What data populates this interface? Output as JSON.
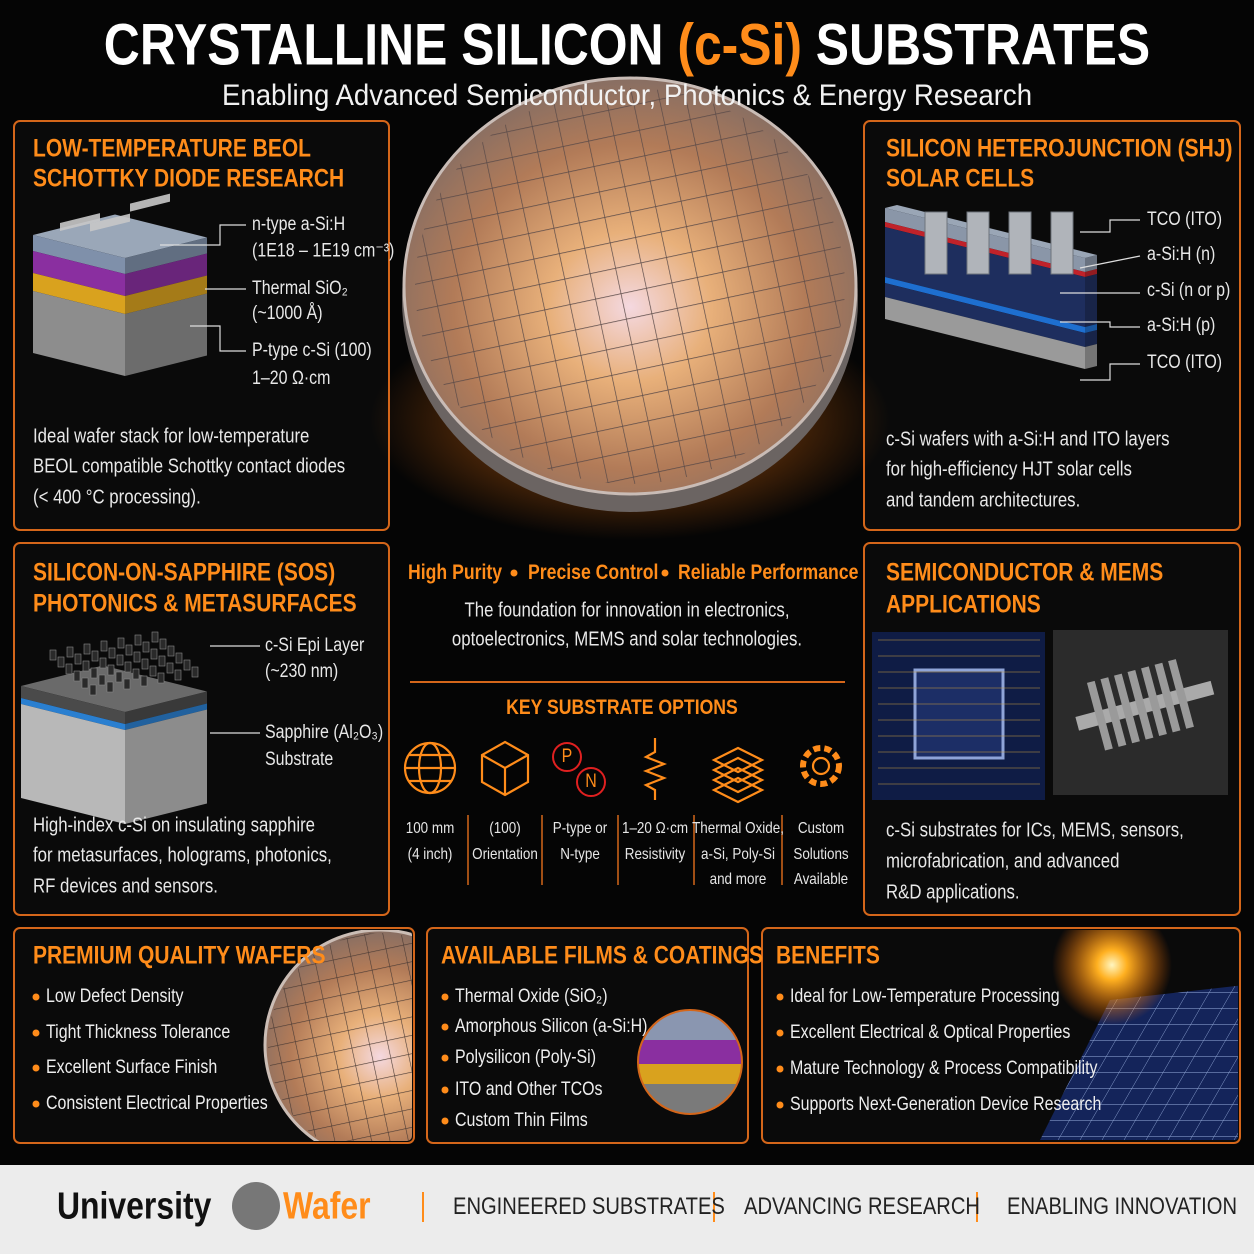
{
  "header": {
    "title_start": "CRYSTALLINE SILICON",
    "title_highlight": "(c-Si)",
    "title_end": "SUBSTRATES",
    "subtitle": "Enabling Advanced Semiconductor, Photonics & Energy Research"
  },
  "schottky": {
    "title": [
      "LOW-TEMPERATURE BEOL",
      "SCHOTTKY DIODE RESEARCH"
    ],
    "layers": [
      [
        "n-type a-Si:H",
        "(1E18 – 1E19 cm⁻³)"
      ],
      [
        "Thermal SiO₂",
        "(~1000 Å)"
      ],
      [
        "P-type c-Si (100)",
        "1–20 Ω·cm"
      ]
    ],
    "description": [
      "Ideal wafer stack for low-temperature",
      "BEOL compatible Schottky contact diodes",
      "(< 400 °C processing)."
    ]
  },
  "shj": {
    "title": [
      "SILICON HETEROJUNCTION (SHJ)",
      "SOLAR CELLS"
    ],
    "layers": [
      "TCO (ITO)",
      "a-Si:H (n)",
      "c-Si (n or p)",
      "a-Si:H (p)",
      "TCO (ITO)"
    ],
    "description": [
      "c-Si wafers with a-Si:H and ITO layers",
      "for high-efficiency HJT solar cells",
      "and tandem architectures."
    ]
  },
  "sos": {
    "title": [
      "SILICON-ON-SAPPHIRE (SOS)",
      "PHOTONICS & METASURFACES"
    ],
    "layers": [
      [
        "c-Si Epi Layer",
        "(~230 nm)"
      ],
      [
        "Sapphire (Al₂O₃)",
        "Substrate"
      ]
    ],
    "description": [
      "High-index c-Si on insulating sapphire",
      "for metasurfaces, holograms, photonics,",
      "RF devices and sensors."
    ]
  },
  "mems": {
    "title": [
      "SEMICONDUCTOR & MEMS",
      "APPLICATIONS"
    ],
    "description": [
      "c-Si substrates for ICs, MEMS, sensors,",
      "microfabrication, and advanced",
      "R&D applications."
    ]
  },
  "center": {
    "highlights": [
      "High Purity",
      "Precise Control",
      "Reliable Performance"
    ],
    "description": [
      "The foundation for innovation in electronics,",
      "optoelectronics, MEMS and solar technologies."
    ],
    "options_title": "KEY SUBSTRATE OPTIONS",
    "pn_icon": [
      "P",
      "N"
    ],
    "options": [
      [
        "100 mm",
        "(4 inch)"
      ],
      [
        "(100)",
        "Orientation"
      ],
      [
        "P-type or",
        "N-type"
      ],
      [
        "1–20 Ω·cm",
        "Resistivity"
      ],
      [
        "Thermal Oxide,",
        "a-Si, Poly-Si",
        "and more"
      ],
      [
        "Custom",
        "Solutions",
        "Available"
      ]
    ]
  },
  "quality": {
    "title": "PREMIUM QUALITY WAFERS",
    "items": [
      "Low Defect Density",
      "Tight Thickness Tolerance",
      "Excellent Surface Finish",
      "Consistent Electrical Properties"
    ]
  },
  "films": {
    "title": "AVAILABLE FILMS & COATINGS",
    "items": [
      "Thermal Oxide (SiO₂)",
      "Amorphous Silicon (a-Si:H)",
      "Polysilicon (Poly-Si)",
      "ITO and Other TCOs",
      "Custom Thin Films"
    ]
  },
  "benefits": {
    "title": "BENEFITS",
    "items": [
      "Ideal for Low-Temperature Processing",
      "Excellent Electrical & Optical Properties",
      "Mature Technology & Process Compatibility",
      "Supports Next-Generation Device Research"
    ]
  },
  "footer": {
    "brand_start": "University",
    "brand_end": "Wafer",
    "items": [
      "ENGINEERED SUBSTRATES",
      "ADVANCING RESEARCH",
      "ENABLING INNOVATION"
    ]
  }
}
